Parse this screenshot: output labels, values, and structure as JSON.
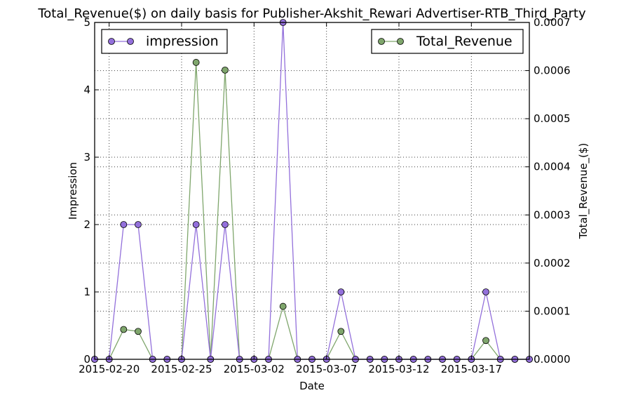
{
  "chart_data": {
    "type": "line",
    "title": "Total_Revenue($) on daily basis for Publisher-Akshit_Rewari Advertiser-RTB_Third_Party",
    "xlabel": "Date",
    "ylabel": "Impression",
    "y2label": "Total_Revenue_($)",
    "x": [
      "2015-02-19",
      "2015-02-20",
      "2015-02-21",
      "2015-02-22",
      "2015-02-23",
      "2015-02-24",
      "2015-02-25",
      "2015-02-26",
      "2015-02-27",
      "2015-02-28",
      "2015-03-01",
      "2015-03-02",
      "2015-03-03",
      "2015-03-04",
      "2015-03-05",
      "2015-03-06",
      "2015-03-07",
      "2015-03-08",
      "2015-03-09",
      "2015-03-10",
      "2015-03-11",
      "2015-03-12",
      "2015-03-13",
      "2015-03-14",
      "2015-03-15",
      "2015-03-16",
      "2015-03-17",
      "2015-03-18",
      "2015-03-19",
      "2015-03-20",
      "2015-03-21"
    ],
    "x_tick_labels": [
      "2015-02-20",
      "2015-02-25",
      "2015-03-02",
      "2015-03-07",
      "2015-03-12",
      "2015-03-17"
    ],
    "ylim": [
      0,
      5
    ],
    "y_ticks": [
      "0",
      "1",
      "2",
      "3",
      "4",
      "5"
    ],
    "y2lim": [
      0,
      0.0007
    ],
    "y2_ticks": [
      "0.0000",
      "0.0001",
      "0.0002",
      "0.0003",
      "0.0004",
      "0.0005",
      "0.0006",
      "0.0007"
    ],
    "grid": true,
    "series": [
      {
        "name": "impression",
        "axis": "left",
        "color": "#9370db",
        "legend_position": "top-left",
        "values": [
          0,
          0,
          2,
          2,
          0,
          0,
          0,
          2,
          0,
          2,
          0,
          0,
          0,
          5,
          0,
          0,
          0,
          1,
          0,
          0,
          0,
          0,
          0,
          0,
          0,
          0,
          0,
          1,
          0,
          0,
          0
        ]
      },
      {
        "name": "Total_Revenue",
        "axis": "right",
        "color": "#7fa66c",
        "legend_position": "top-right",
        "values": [
          0,
          0,
          6.2e-05,
          5.8e-05,
          0,
          0,
          0,
          0.000617,
          0,
          0.000601,
          0,
          0,
          0,
          0.00011,
          0,
          0,
          0,
          5.8e-05,
          0,
          0,
          0,
          0,
          0,
          0,
          0,
          0,
          0,
          3.9e-05,
          0,
          0,
          0
        ]
      }
    ]
  }
}
